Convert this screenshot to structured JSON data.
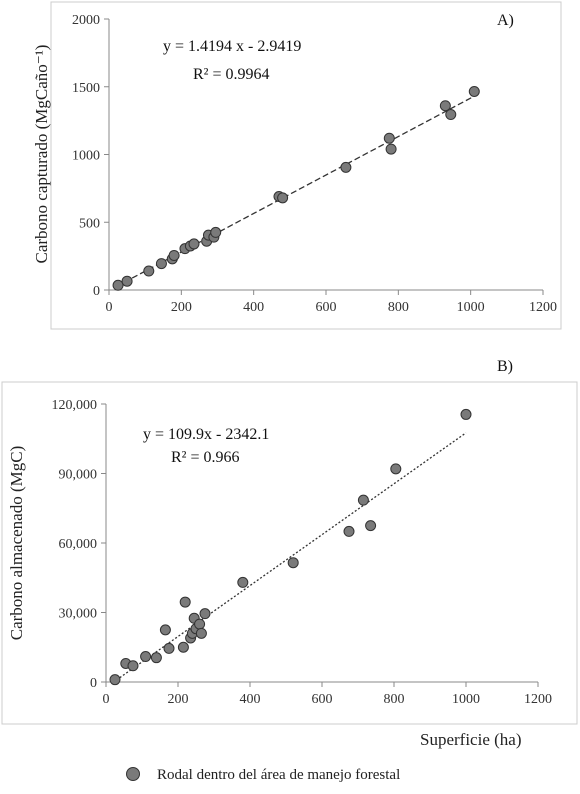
{
  "chart_data": [
    {
      "type": "scatter",
      "panel_label": "A)",
      "ylabel": "Carbono capturado (MgCaño⁻¹)",
      "xlabel": "",
      "xlim": [
        0,
        1200
      ],
      "ylim": [
        0,
        2000
      ],
      "x_ticks": [
        0,
        200,
        400,
        600,
        800,
        1000,
        1200
      ],
      "y_ticks": [
        0,
        500,
        1000,
        1500,
        2000
      ],
      "x_tick_labels": [
        "0",
        "200",
        "400",
        "600",
        "800",
        "1000",
        "1200"
      ],
      "y_tick_labels": [
        "0",
        "500",
        "1000",
        "1500",
        "2000"
      ],
      "equation": "y = 1.4194  x - 2.9419",
      "r2": "R² = 0.9964",
      "trendline": {
        "slope": 1.4194,
        "intercept": -2.9419,
        "x_range": [
          20,
          1010
        ],
        "style": "dashed"
      },
      "series": [
        {
          "points": [
            {
              "x": 25,
              "y": 35
            },
            {
              "x": 50,
              "y": 65
            },
            {
              "x": 110,
              "y": 140
            },
            {
              "x": 145,
              "y": 195
            },
            {
              "x": 175,
              "y": 230
            },
            {
              "x": 180,
              "y": 255
            },
            {
              "x": 210,
              "y": 305
            },
            {
              "x": 225,
              "y": 325
            },
            {
              "x": 235,
              "y": 340
            },
            {
              "x": 270,
              "y": 360
            },
            {
              "x": 275,
              "y": 405
            },
            {
              "x": 290,
              "y": 390
            },
            {
              "x": 295,
              "y": 425
            },
            {
              "x": 470,
              "y": 690
            },
            {
              "x": 480,
              "y": 680
            },
            {
              "x": 655,
              "y": 905
            },
            {
              "x": 775,
              "y": 1120
            },
            {
              "x": 780,
              "y": 1040
            },
            {
              "x": 930,
              "y": 1360
            },
            {
              "x": 945,
              "y": 1295
            },
            {
              "x": 1010,
              "y": 1465
            }
          ]
        }
      ]
    },
    {
      "type": "scatter",
      "panel_label": "B)",
      "ylabel": "Carbono almacenado (MgC)",
      "xlabel": "Superficie (ha)",
      "xlim": [
        0,
        1200
      ],
      "ylim": [
        0,
        120000
      ],
      "x_ticks": [
        0,
        200,
        400,
        600,
        800,
        1000,
        1200
      ],
      "y_ticks": [
        0,
        30000,
        60000,
        90000,
        120000
      ],
      "x_tick_labels": [
        "0",
        "200",
        "400",
        "600",
        "800",
        "1000",
        "1200"
      ],
      "y_tick_labels": [
        "0",
        "30,000",
        "60,000",
        "90,000",
        "120,000"
      ],
      "equation": "y = 109.9x - 2342.1",
      "r2": "R² = 0.966",
      "trendline": {
        "slope": 109.9,
        "intercept": -2342.1,
        "x_range": [
          20,
          1000
        ],
        "style": "dotted"
      },
      "series": [
        {
          "points": [
            {
              "x": 25,
              "y": 1000
            },
            {
              "x": 55,
              "y": 8000
            },
            {
              "x": 75,
              "y": 7000
            },
            {
              "x": 110,
              "y": 11000
            },
            {
              "x": 140,
              "y": 10500
            },
            {
              "x": 165,
              "y": 22500
            },
            {
              "x": 175,
              "y": 14500
            },
            {
              "x": 215,
              "y": 15000
            },
            {
              "x": 220,
              "y": 34500
            },
            {
              "x": 235,
              "y": 19000
            },
            {
              "x": 240,
              "y": 21000
            },
            {
              "x": 245,
              "y": 27500
            },
            {
              "x": 250,
              "y": 23000
            },
            {
              "x": 260,
              "y": 25000
            },
            {
              "x": 265,
              "y": 21000
            },
            {
              "x": 275,
              "y": 29500
            },
            {
              "x": 380,
              "y": 43000
            },
            {
              "x": 520,
              "y": 51500
            },
            {
              "x": 675,
              "y": 65000
            },
            {
              "x": 715,
              "y": 78500
            },
            {
              "x": 735,
              "y": 67500
            },
            {
              "x": 805,
              "y": 92000
            },
            {
              "x": 1000,
              "y": 115500
            }
          ]
        }
      ]
    }
  ],
  "legend": {
    "label": "Rodal dentro del área de manejo forestal",
    "marker_color": "#7a7a7a"
  },
  "colors": {
    "marker_fill": "#7a7a7a",
    "marker_stroke": "#333333",
    "axis": "#888888",
    "trend": "#333333"
  }
}
